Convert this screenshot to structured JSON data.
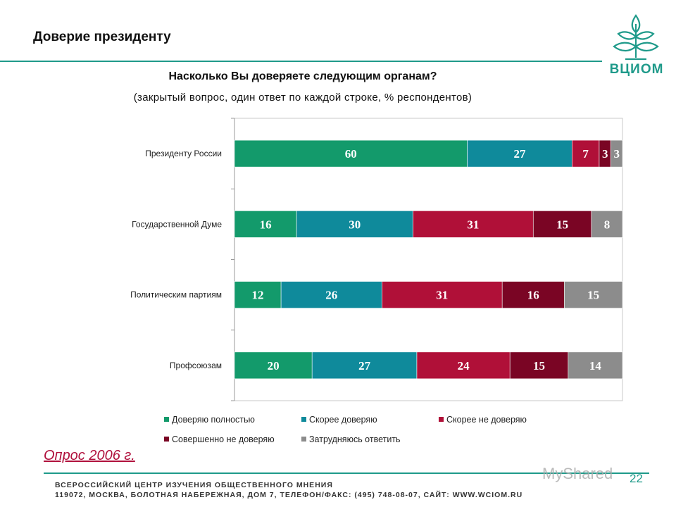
{
  "slide": {
    "title": "Доверие президенту",
    "question": "Насколько Вы доверяете следующим органам?",
    "subtitle": "(закрытый вопрос, один ответ по каждой строке, % респондентов)",
    "survey_note": "Опрос 2006 г.",
    "page_number": "22",
    "logo_text": "ВЦИОМ",
    "footer_line1": "ВСЕРОССИЙСКИЙ ЦЕНТР ИЗУЧЕНИЯ ОБЩЕСТВЕННОГО МНЕНИЯ",
    "footer_line2": "119072, МОСКВА, БОЛОТНАЯ НАБЕРЕЖНАЯ, ДОМ 7, ТЕЛЕФОН/ФАКС: (495) 748-08-07, САЙТ: WWW.WCIOM.RU",
    "watermark": "MyShared"
  },
  "colors": {
    "accent": "#1f9a8a"
  },
  "chart_data": {
    "type": "bar",
    "orientation": "horizontal",
    "stacked": true,
    "categories": [
      "Президенту России",
      "Государственной Думе",
      "Политическим партиям",
      "Профсоюзам"
    ],
    "series": [
      {
        "name": "Доверяю полностью",
        "color": "#139a6b",
        "values": [
          60,
          16,
          12,
          20
        ]
      },
      {
        "name": "Скорее доверяю",
        "color": "#0f8a9b",
        "values": [
          27,
          30,
          26,
          27
        ]
      },
      {
        "name": "Скорее не доверяю",
        "color": "#b01038",
        "values": [
          7,
          31,
          31,
          24
        ]
      },
      {
        "name": "Совершенно не доверяю",
        "color": "#7a0524",
        "values": [
          3,
          15,
          16,
          15
        ]
      },
      {
        "name": "Затрудняюсь ответить",
        "color": "#8c8c8c",
        "values": [
          3,
          8,
          15,
          14
        ]
      }
    ],
    "xlim": [
      0,
      100
    ],
    "legend_position": "bottom",
    "grid": false
  }
}
